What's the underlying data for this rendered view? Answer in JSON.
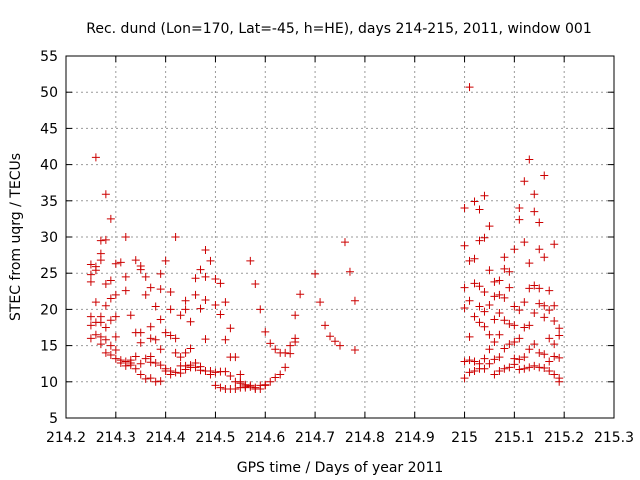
{
  "chart_data": {
    "type": "scatter",
    "title": "Rec. dund (Lon=170, Lat=-45, h=HE), days 214-215, 2011, window 001",
    "xlabel": "GPS time / Days of year 2011",
    "ylabel": "STEC from uqrg / TECUs",
    "xlim": [
      214.2,
      215.3
    ],
    "ylim": [
      5,
      55
    ],
    "xticks": [
      214.2,
      214.3,
      214.4,
      214.5,
      214.6,
      214.7,
      214.8,
      214.9,
      215.0,
      215.1,
      215.2,
      215.3
    ],
    "xtick_labels": [
      "214.2",
      "214.3",
      "214.4",
      "214.5",
      "214.6",
      "214.7",
      "214.8",
      "214.9",
      "215",
      "215.1",
      "215.2",
      "215.3"
    ],
    "yticks": [
      5,
      10,
      15,
      20,
      25,
      30,
      35,
      40,
      45,
      50,
      55
    ],
    "ytick_labels": [
      "5",
      "10",
      "15",
      "20",
      "25",
      "30",
      "35",
      "40",
      "45",
      "50",
      "55"
    ],
    "grid": true,
    "marker": "+",
    "color": "#cc0000",
    "points": [
      [
        214.25,
        16.0
      ],
      [
        214.25,
        17.8
      ],
      [
        214.25,
        19.0
      ],
      [
        214.25,
        23.8
      ],
      [
        214.25,
        24.8
      ],
      [
        214.25,
        26.2
      ],
      [
        214.26,
        16.5
      ],
      [
        214.26,
        18.2
      ],
      [
        214.26,
        21.0
      ],
      [
        214.26,
        25.4
      ],
      [
        214.26,
        25.9
      ],
      [
        214.26,
        41.0
      ],
      [
        214.27,
        15.2
      ],
      [
        214.27,
        16.2
      ],
      [
        214.27,
        18.2
      ],
      [
        214.27,
        19.0
      ],
      [
        214.27,
        26.8
      ],
      [
        214.27,
        27.7
      ],
      [
        214.27,
        29.5
      ],
      [
        214.28,
        14.0
      ],
      [
        214.28,
        15.8
      ],
      [
        214.28,
        17.5
      ],
      [
        214.28,
        20.5
      ],
      [
        214.28,
        23.5
      ],
      [
        214.28,
        29.6
      ],
      [
        214.28,
        35.9
      ],
      [
        214.29,
        13.7
      ],
      [
        214.29,
        15.0
      ],
      [
        214.29,
        18.5
      ],
      [
        214.29,
        21.5
      ],
      [
        214.29,
        24.0
      ],
      [
        214.29,
        32.5
      ],
      [
        214.3,
        13.2
      ],
      [
        214.3,
        14.4
      ],
      [
        214.3,
        16.2
      ],
      [
        214.3,
        19.0
      ],
      [
        214.3,
        22.0
      ],
      [
        214.3,
        26.3
      ],
      [
        214.31,
        12.6
      ],
      [
        214.31,
        13.0
      ],
      [
        214.31,
        26.5
      ],
      [
        214.32,
        12.2
      ],
      [
        214.32,
        12.8
      ],
      [
        214.32,
        22.6
      ],
      [
        214.32,
        24.5
      ],
      [
        214.32,
        30.0
      ],
      [
        214.33,
        12.3
      ],
      [
        214.33,
        12.6
      ],
      [
        214.33,
        13.0
      ],
      [
        214.33,
        19.2
      ],
      [
        214.34,
        11.8
      ],
      [
        214.34,
        13.5
      ],
      [
        214.34,
        16.8
      ],
      [
        214.34,
        26.8
      ],
      [
        214.35,
        11.0
      ],
      [
        214.35,
        12.5
      ],
      [
        214.35,
        15.4
      ],
      [
        214.35,
        16.8
      ],
      [
        214.35,
        25.5
      ],
      [
        214.35,
        26.0
      ],
      [
        214.36,
        10.4
      ],
      [
        214.36,
        13.2
      ],
      [
        214.36,
        22.0
      ],
      [
        214.36,
        24.5
      ],
      [
        214.37,
        10.5
      ],
      [
        214.37,
        12.7
      ],
      [
        214.37,
        13.5
      ],
      [
        214.37,
        16.0
      ],
      [
        214.37,
        17.6
      ],
      [
        214.37,
        23.0
      ],
      [
        214.38,
        10.0
      ],
      [
        214.38,
        12.6
      ],
      [
        214.38,
        15.8
      ],
      [
        214.38,
        20.4
      ],
      [
        214.39,
        10.1
      ],
      [
        214.39,
        12.3
      ],
      [
        214.39,
        14.5
      ],
      [
        214.39,
        18.6
      ],
      [
        214.39,
        22.8
      ],
      [
        214.39,
        24.9
      ],
      [
        214.4,
        11.8
      ],
      [
        214.4,
        11.5
      ],
      [
        214.4,
        16.8
      ],
      [
        214.4,
        26.7
      ],
      [
        214.41,
        11.0
      ],
      [
        214.41,
        11.5
      ],
      [
        214.41,
        16.4
      ],
      [
        214.41,
        20.0
      ],
      [
        214.41,
        22.4
      ],
      [
        214.42,
        11.3
      ],
      [
        214.42,
        14.0
      ],
      [
        214.42,
        16.0
      ],
      [
        214.42,
        30.0
      ],
      [
        214.43,
        11.2
      ],
      [
        214.43,
        12.2
      ],
      [
        214.43,
        13.4
      ],
      [
        214.43,
        19.2
      ],
      [
        214.44,
        11.7
      ],
      [
        214.44,
        12.2
      ],
      [
        214.44,
        14.0
      ],
      [
        214.44,
        20.0
      ],
      [
        214.44,
        21.2
      ],
      [
        214.45,
        12.0
      ],
      [
        214.45,
        12.3
      ],
      [
        214.45,
        14.6
      ],
      [
        214.45,
        18.3
      ],
      [
        214.46,
        12.0
      ],
      [
        214.46,
        12.6
      ],
      [
        214.46,
        22.0
      ],
      [
        214.46,
        24.3
      ],
      [
        214.47,
        11.6
      ],
      [
        214.47,
        12.1
      ],
      [
        214.47,
        20.1
      ],
      [
        214.47,
        25.5
      ],
      [
        214.48,
        11.5
      ],
      [
        214.48,
        15.9
      ],
      [
        214.48,
        21.3
      ],
      [
        214.48,
        24.5
      ],
      [
        214.48,
        28.2
      ],
      [
        214.49,
        11.0
      ],
      [
        214.49,
        11.5
      ],
      [
        214.49,
        26.7
      ],
      [
        214.5,
        9.5
      ],
      [
        214.5,
        11.3
      ],
      [
        214.5,
        20.6
      ],
      [
        214.5,
        24.2
      ],
      [
        214.51,
        9.2
      ],
      [
        214.51,
        11.4
      ],
      [
        214.51,
        19.3
      ],
      [
        214.51,
        23.6
      ],
      [
        214.52,
        9.0
      ],
      [
        214.52,
        11.4
      ],
      [
        214.52,
        15.8
      ],
      [
        214.52,
        21.0
      ],
      [
        214.53,
        9.0
      ],
      [
        214.53,
        10.8
      ],
      [
        214.53,
        13.4
      ],
      [
        214.53,
        17.4
      ],
      [
        214.54,
        9.0
      ],
      [
        214.54,
        10.0
      ],
      [
        214.54,
        13.4
      ],
      [
        214.55,
        9.2
      ],
      [
        214.55,
        10.0
      ],
      [
        214.55,
        11.0
      ],
      [
        214.55,
        9.8
      ],
      [
        214.56,
        9.4
      ],
      [
        214.56,
        9.6
      ],
      [
        214.56,
        9.2
      ],
      [
        214.57,
        9.3
      ],
      [
        214.57,
        9.5
      ],
      [
        214.57,
        26.7
      ],
      [
        214.58,
        9.0
      ],
      [
        214.58,
        9.2
      ],
      [
        214.58,
        23.5
      ],
      [
        214.59,
        9.0
      ],
      [
        214.59,
        9.5
      ],
      [
        214.59,
        20.0
      ],
      [
        214.6,
        9.5
      ],
      [
        214.6,
        9.6
      ],
      [
        214.6,
        16.9
      ],
      [
        214.61,
        10.0
      ],
      [
        214.61,
        15.3
      ],
      [
        214.62,
        10.6
      ],
      [
        214.62,
        14.5
      ],
      [
        214.63,
        11.0
      ],
      [
        214.63,
        14.0
      ],
      [
        214.64,
        12.0
      ],
      [
        214.64,
        14.0
      ],
      [
        214.65,
        13.9
      ],
      [
        214.65,
        15.0
      ],
      [
        214.66,
        15.5
      ],
      [
        214.66,
        16.0
      ],
      [
        214.66,
        19.2
      ],
      [
        214.67,
        22.1
      ],
      [
        214.7,
        24.9
      ],
      [
        214.71,
        21.0
      ],
      [
        214.72,
        17.8
      ],
      [
        214.73,
        16.3
      ],
      [
        214.74,
        15.6
      ],
      [
        214.75,
        15.0
      ],
      [
        214.76,
        29.3
      ],
      [
        214.77,
        25.2
      ],
      [
        214.78,
        21.2
      ],
      [
        214.78,
        14.4
      ],
      [
        215.0,
        10.5
      ],
      [
        215.0,
        12.8
      ],
      [
        215.0,
        20.2
      ],
      [
        215.0,
        23.0
      ],
      [
        215.0,
        28.8
      ],
      [
        215.0,
        34.0
      ],
      [
        215.01,
        11.3
      ],
      [
        215.01,
        13.0
      ],
      [
        215.01,
        16.2
      ],
      [
        215.01,
        21.2
      ],
      [
        215.01,
        26.7
      ],
      [
        215.01,
        50.7
      ],
      [
        215.02,
        11.5
      ],
      [
        215.02,
        12.8
      ],
      [
        215.02,
        19.0
      ],
      [
        215.02,
        23.6
      ],
      [
        215.02,
        27.0
      ],
      [
        215.02,
        34.9
      ],
      [
        215.03,
        11.8
      ],
      [
        215.03,
        12.5
      ],
      [
        215.03,
        18.2
      ],
      [
        215.03,
        20.4
      ],
      [
        215.03,
        23.2
      ],
      [
        215.03,
        29.5
      ],
      [
        215.03,
        33.8
      ],
      [
        215.04,
        11.8
      ],
      [
        215.04,
        13.2
      ],
      [
        215.04,
        17.6
      ],
      [
        215.04,
        19.7
      ],
      [
        215.04,
        22.4
      ],
      [
        215.04,
        29.9
      ],
      [
        215.04,
        35.7
      ],
      [
        215.05,
        12.5
      ],
      [
        215.05,
        14.5
      ],
      [
        215.05,
        16.5
      ],
      [
        215.05,
        20.6
      ],
      [
        215.05,
        25.4
      ],
      [
        215.05,
        31.5
      ],
      [
        215.06,
        11.0
      ],
      [
        215.06,
        13.1
      ],
      [
        215.06,
        15.5
      ],
      [
        215.06,
        18.6
      ],
      [
        215.06,
        21.8
      ],
      [
        215.06,
        23.8
      ],
      [
        215.07,
        11.5
      ],
      [
        215.07,
        13.4
      ],
      [
        215.07,
        16.5
      ],
      [
        215.07,
        19.5
      ],
      [
        215.07,
        22.0
      ],
      [
        215.07,
        24.0
      ],
      [
        215.08,
        11.8
      ],
      [
        215.08,
        14.6
      ],
      [
        215.08,
        18.5
      ],
      [
        215.08,
        21.6
      ],
      [
        215.08,
        25.6
      ],
      [
        215.08,
        27.2
      ],
      [
        215.09,
        12.0
      ],
      [
        215.09,
        15.2
      ],
      [
        215.09,
        18.0
      ],
      [
        215.09,
        23.0
      ],
      [
        215.09,
        25.2
      ],
      [
        215.1,
        12.4
      ],
      [
        215.1,
        13.2
      ],
      [
        215.1,
        15.5
      ],
      [
        215.1,
        17.8
      ],
      [
        215.1,
        20.4
      ],
      [
        215.1,
        28.3
      ],
      [
        215.11,
        11.7
      ],
      [
        215.11,
        13.1
      ],
      [
        215.11,
        16.0
      ],
      [
        215.11,
        19.9
      ],
      [
        215.11,
        32.4
      ],
      [
        215.11,
        34.0
      ],
      [
        215.12,
        11.8
      ],
      [
        215.12,
        13.4
      ],
      [
        215.12,
        17.5
      ],
      [
        215.12,
        21.0
      ],
      [
        215.12,
        29.3
      ],
      [
        215.12,
        37.7
      ],
      [
        215.13,
        12.0
      ],
      [
        215.13,
        14.5
      ],
      [
        215.13,
        17.8
      ],
      [
        215.13,
        22.9
      ],
      [
        215.13,
        26.4
      ],
      [
        215.13,
        40.7
      ],
      [
        215.14,
        12.2
      ],
      [
        215.14,
        15.2
      ],
      [
        215.14,
        19.5
      ],
      [
        215.14,
        23.3
      ],
      [
        215.14,
        33.5
      ],
      [
        215.14,
        35.9
      ],
      [
        215.15,
        12.0
      ],
      [
        215.15,
        14.0
      ],
      [
        215.15,
        20.8
      ],
      [
        215.15,
        22.9
      ],
      [
        215.15,
        28.3
      ],
      [
        215.15,
        32.0
      ],
      [
        215.16,
        11.9
      ],
      [
        215.16,
        13.8
      ],
      [
        215.16,
        18.9
      ],
      [
        215.16,
        20.5
      ],
      [
        215.16,
        27.2
      ],
      [
        215.16,
        38.5
      ],
      [
        215.17,
        11.5
      ],
      [
        215.17,
        12.8
      ],
      [
        215.17,
        16.0
      ],
      [
        215.17,
        19.9
      ],
      [
        215.17,
        22.6
      ],
      [
        215.18,
        11.0
      ],
      [
        215.18,
        13.5
      ],
      [
        215.18,
        15.2
      ],
      [
        215.18,
        18.4
      ],
      [
        215.18,
        20.5
      ],
      [
        215.18,
        29.0
      ],
      [
        215.19,
        10.5
      ],
      [
        215.19,
        10.0
      ],
      [
        215.19,
        13.3
      ],
      [
        215.19,
        16.4
      ],
      [
        215.19,
        17.4
      ]
    ]
  }
}
